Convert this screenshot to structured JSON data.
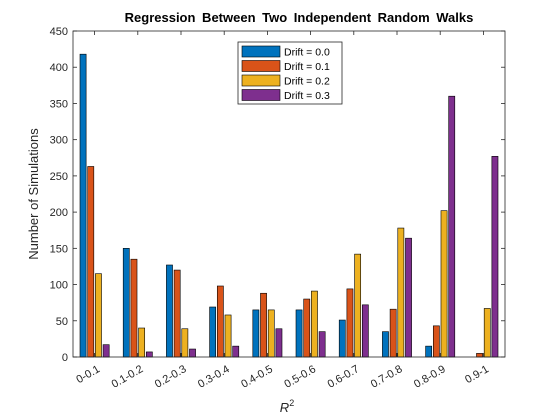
{
  "chart_data": {
    "type": "bar",
    "title": "Regression Between Two Independent Random Walks",
    "xlabel": "R",
    "xlabel_superscript": "2",
    "ylabel": "Number of Simulations",
    "ylim": [
      0,
      450
    ],
    "yticks": [
      0,
      50,
      100,
      150,
      200,
      250,
      300,
      350,
      400,
      450
    ],
    "categories": [
      "0-0.1",
      "0.1-0.2",
      "0.2-0.3",
      "0.3-0.4",
      "0.4-0.5",
      "0.5-0.6",
      "0.6-0.7",
      "0.7-0.8",
      "0.8-0.9",
      "0.9-1"
    ],
    "series": [
      {
        "name": "Drift = 0.0",
        "color": "#0072BD",
        "values": [
          418,
          150,
          127,
          69,
          65,
          65,
          51,
          35,
          15,
          0
        ]
      },
      {
        "name": "Drift = 0.1",
        "color": "#D95319",
        "values": [
          263,
          135,
          120,
          98,
          88,
          80,
          94,
          66,
          43,
          5
        ]
      },
      {
        "name": "Drift = 0.2",
        "color": "#EDB120",
        "values": [
          115,
          40,
          39,
          58,
          65,
          91,
          142,
          178,
          202,
          67
        ]
      },
      {
        "name": "Drift = 0.3",
        "color": "#7E2F8E",
        "values": [
          17,
          7,
          11,
          15,
          39,
          35,
          72,
          164,
          360,
          277
        ]
      }
    ],
    "legend_position": "top-center",
    "grid": false,
    "box": true
  }
}
